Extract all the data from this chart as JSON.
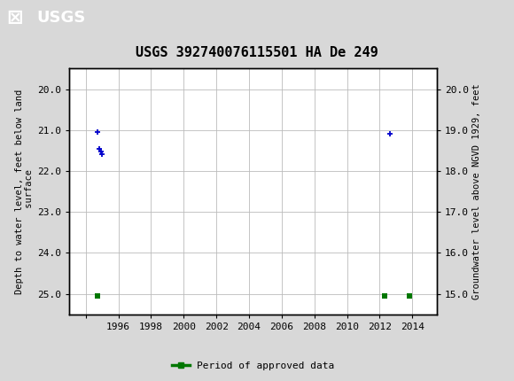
{
  "title": "USGS 392740076115501 HA De 249",
  "ylabel_left": "Depth to water level, feet below land\n surface",
  "ylabel_right": "Groundwater level above NGVD 1929, feet",
  "xlim": [
    1993.0,
    2015.5
  ],
  "ylim_left": [
    25.5,
    19.5
  ],
  "ylim_right": [
    14.5,
    20.5
  ],
  "xticks": [
    1994,
    1996,
    1998,
    2000,
    2002,
    2004,
    2006,
    2008,
    2010,
    2012,
    2014
  ],
  "xtick_labels": [
    "",
    "1996",
    "1998",
    "2000",
    "2002",
    "2004",
    "2006",
    "2008",
    "2010",
    "2012",
    "2014"
  ],
  "yticks_left": [
    20.0,
    21.0,
    22.0,
    23.0,
    24.0,
    25.0
  ],
  "yticks_right": [
    15.0,
    16.0,
    17.0,
    18.0,
    19.0,
    20.0
  ],
  "blue_points_x": [
    1994.7,
    1994.85,
    1994.92,
    1994.97,
    2012.6
  ],
  "blue_points_y": [
    21.05,
    21.45,
    21.52,
    21.58,
    21.1
  ],
  "green_points_x": [
    1994.7,
    2012.3,
    2013.8
  ],
  "green_points_y": [
    25.05,
    25.05,
    25.05
  ],
  "header_bg": "#2d6a2d",
  "blue_color": "#0000cc",
  "green_color": "#007700",
  "grid_color": "#bbbbbb",
  "background_color": "#d8d8d8",
  "plot_bg": "#ffffff",
  "title_fontsize": 11,
  "axis_fontsize": 7.5,
  "tick_fontsize": 8
}
